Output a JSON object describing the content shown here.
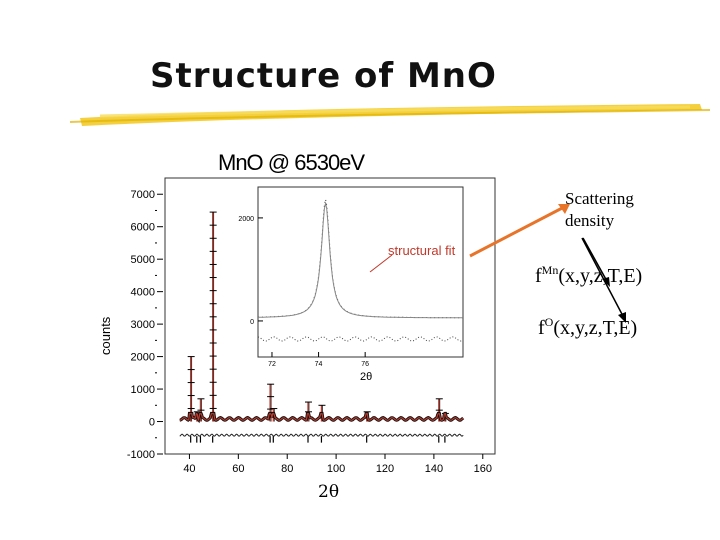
{
  "slide": {
    "title": "Structure of MnO"
  },
  "figure": {
    "title": "MnO @ 6530eV",
    "structural_fit_label": "structural fit",
    "main_x_label": "2θ",
    "main_y_label": "counts",
    "inset_x_label": "2θ"
  },
  "annotations": {
    "scattering_line1": "Scattering",
    "scattering_line2": "density",
    "fmn_base": "f",
    "fmn_sup": "Mn",
    "fmn_args": "(x,y,z,T,E)",
    "fo_base": "f",
    "fo_sup": "O",
    "fo_args": "(x,y,z,T,E)"
  },
  "colors": {
    "arrow": "#e8742a",
    "fit_line": "#c0392b",
    "title_underline": "#f2c81e"
  },
  "chart_data": [
    {
      "type": "scatter",
      "title": "MnO @ 6530eV",
      "xlabel": "2θ",
      "ylabel": "counts",
      "xlim": [
        30,
        165
      ],
      "ylim": [
        -1000,
        7500
      ],
      "x_ticks": [
        "40",
        "60",
        "80",
        "100",
        "120",
        "140",
        "160"
      ],
      "y_ticks": [
        "7000",
        "6000",
        "5000",
        "4000",
        "3000",
        "2000",
        "1000",
        "0",
        "-1000"
      ],
      "peaks": [
        {
          "x": 40.5,
          "y": 2000
        },
        {
          "x": 43.0,
          "y": 300
        },
        {
          "x": 44.5,
          "y": 700
        },
        {
          "x": 49.5,
          "y": 6450
        },
        {
          "x": 73.0,
          "y": 1150
        },
        {
          "x": 74.3,
          "y": 400
        },
        {
          "x": 88.5,
          "y": 600
        },
        {
          "x": 94.0,
          "y": 500
        },
        {
          "x": 112.5,
          "y": 300
        },
        {
          "x": 142.0,
          "y": 700
        },
        {
          "x": 144.5,
          "y": 250
        }
      ],
      "series": [
        {
          "name": "structural fit",
          "style": "line"
        }
      ]
    },
    {
      "type": "scatter",
      "title": "",
      "xlabel": "2θ",
      "ylabel": "",
      "xlim": [
        71.4,
        80.2
      ],
      "ylim": [
        -700,
        2600
      ],
      "x_ticks": [
        "72",
        "74",
        "76"
      ],
      "y_ticks": [
        "2000",
        "0"
      ],
      "peak": {
        "x": 74.3,
        "y": 2300
      }
    }
  ]
}
